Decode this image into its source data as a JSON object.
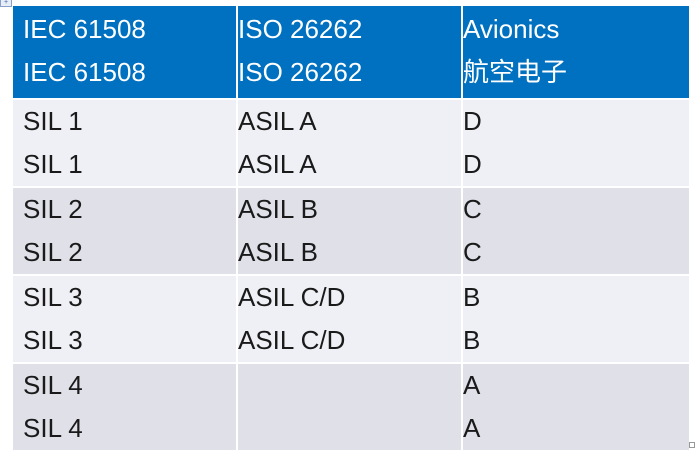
{
  "header": [
    {
      "line1": "IEC 61508",
      "line2": "IEC 61508"
    },
    {
      "line1": "ISO 26262",
      "line2": "ISO 26262"
    },
    {
      "line1": "Avionics",
      "line2": "航空电子"
    }
  ],
  "rows": [
    [
      {
        "line1": "SIL 1",
        "line2": "SIL 1"
      },
      {
        "line1": "ASIL A",
        "line2": "ASIL A"
      },
      {
        "line1": "D",
        "line2": "D"
      }
    ],
    [
      {
        "line1": "SIL 2",
        "line2": "SIL 2"
      },
      {
        "line1": "ASIL B",
        "line2": "ASIL B"
      },
      {
        "line1": "C",
        "line2": "C"
      }
    ],
    [
      {
        "line1": "SIL 3",
        "line2": "SIL 3"
      },
      {
        "line1": "ASIL C/D",
        "line2": "ASIL C/D"
      },
      {
        "line1": "B",
        "line2": "B"
      }
    ],
    [
      {
        "line1": "SIL 4",
        "line2": "SIL 4"
      },
      {
        "line1": "",
        "line2": ""
      },
      {
        "line1": "A",
        "line2": "A"
      }
    ]
  ],
  "colors": {
    "header": "#0070c0",
    "row_light": "#eff0f5",
    "row_dark": "#dfe0e8"
  }
}
